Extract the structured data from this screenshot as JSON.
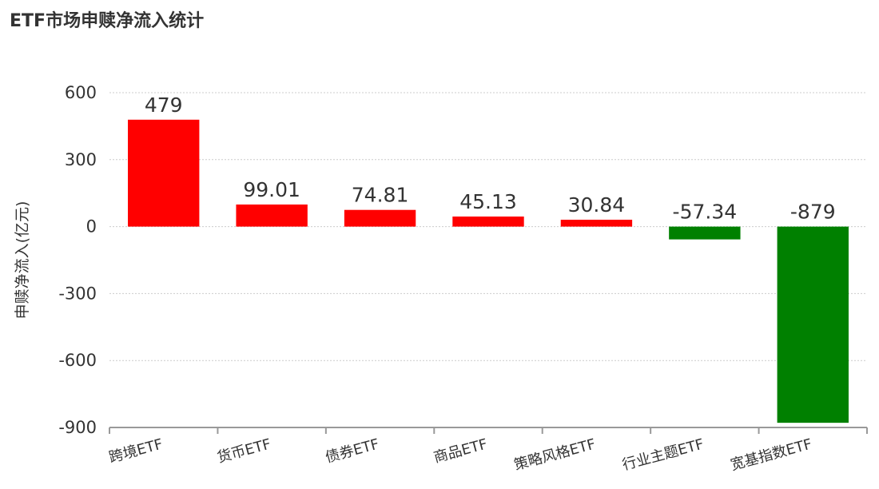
{
  "chart_data": {
    "type": "bar",
    "title": "ETF市场申赎净流入统计",
    "xlabel": "",
    "ylabel": "申赎净流入(亿元)",
    "categories": [
      "跨境ETF",
      "货币ETF",
      "债券ETF",
      "商品ETF",
      "策略风格ETF",
      "行业主题ETF",
      "宽基指数ETF"
    ],
    "values": [
      479,
      99.01,
      74.81,
      45.13,
      30.84,
      -57.34,
      -879
    ],
    "data_labels": [
      "479",
      "99.01",
      "74.81",
      "45.13",
      "30.84",
      "-57.34",
      "-879"
    ],
    "ylim": [
      -900,
      600
    ],
    "yticks": [
      600,
      300,
      0,
      -300,
      -600,
      -900
    ],
    "grid": true,
    "colors": {
      "positive": "#ff0000",
      "negative": "#008000"
    }
  }
}
